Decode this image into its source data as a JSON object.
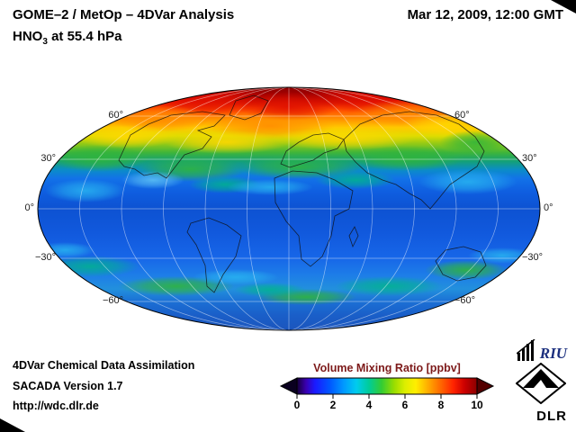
{
  "header": {
    "title": "GOME–2 / MetOp – 4DVar Analysis",
    "compound": "HNO",
    "compound_sub": "3",
    "compound_suffix": " at 55.4 hPa",
    "datetime": "Mar 12, 2009, 12:00 GMT"
  },
  "map": {
    "lat_labels": [
      "60°",
      "30°",
      "0°",
      "−30°",
      "−60°"
    ],
    "zonal_stops": [
      {
        "o": "0.00",
        "c": "#a80000"
      },
      {
        "o": "0.03",
        "c": "#c80000"
      },
      {
        "o": "0.06",
        "c": "#e81500"
      },
      {
        "o": "0.09",
        "c": "#ff4a00"
      },
      {
        "o": "0.13",
        "c": "#ff9000"
      },
      {
        "o": "0.165",
        "c": "#ffc800"
      },
      {
        "o": "0.20",
        "c": "#e0dc00"
      },
      {
        "o": "0.235",
        "c": "#8cc818"
      },
      {
        "o": "0.27",
        "c": "#3cb43c"
      },
      {
        "o": "0.305",
        "c": "#14a078"
      },
      {
        "o": "0.34",
        "c": "#0b8cc8"
      },
      {
        "o": "0.375",
        "c": "#1272e8"
      },
      {
        "o": "0.43",
        "c": "#0f5ee0"
      },
      {
        "o": "0.50",
        "c": "#0d52d2"
      },
      {
        "o": "0.60",
        "c": "#1159dd"
      },
      {
        "o": "0.70",
        "c": "#1766e8"
      },
      {
        "o": "0.77",
        "c": "#1d7ce8"
      },
      {
        "o": "0.83",
        "c": "#2290dd"
      },
      {
        "o": "0.88",
        "c": "#1b70d5"
      },
      {
        "o": "0.94",
        "c": "#1a5ec8"
      },
      {
        "o": "1.00",
        "c": "#1b55bd"
      }
    ]
  },
  "footer": {
    "line1": "4DVar Chemical Data Assimilation",
    "line2": "SACADA Version 1.7",
    "line3": "http://wdc.dlr.de"
  },
  "colorbar": {
    "title": "Volume Mixing Ratio [ppbv]",
    "title_color": "#7d1a1a",
    "min": 0,
    "max": 10,
    "ticks": [
      "0",
      "2",
      "4",
      "6",
      "8",
      "10"
    ],
    "left_arrow_color": "#0a0020",
    "right_arrow_color": "#530000",
    "stops": [
      {
        "o": "0.00",
        "c": "#150038"
      },
      {
        "o": "0.05",
        "c": "#3a00b0"
      },
      {
        "o": "0.10",
        "c": "#1a1aff"
      },
      {
        "o": "0.18",
        "c": "#0055ff"
      },
      {
        "o": "0.26",
        "c": "#0099ff"
      },
      {
        "o": "0.33",
        "c": "#00ccee"
      },
      {
        "o": "0.40",
        "c": "#00cc99"
      },
      {
        "o": "0.47",
        "c": "#33cc33"
      },
      {
        "o": "0.54",
        "c": "#99dd00"
      },
      {
        "o": "0.60",
        "c": "#ddee00"
      },
      {
        "o": "0.66",
        "c": "#ffee00"
      },
      {
        "o": "0.73",
        "c": "#ffaa00"
      },
      {
        "o": "0.80",
        "c": "#ff6600"
      },
      {
        "o": "0.87",
        "c": "#ff2200"
      },
      {
        "o": "0.93",
        "c": "#cc0000"
      },
      {
        "o": "1.00",
        "c": "#8b0000"
      }
    ]
  },
  "logos": {
    "riu": "RIU",
    "dlr": "DLR"
  }
}
